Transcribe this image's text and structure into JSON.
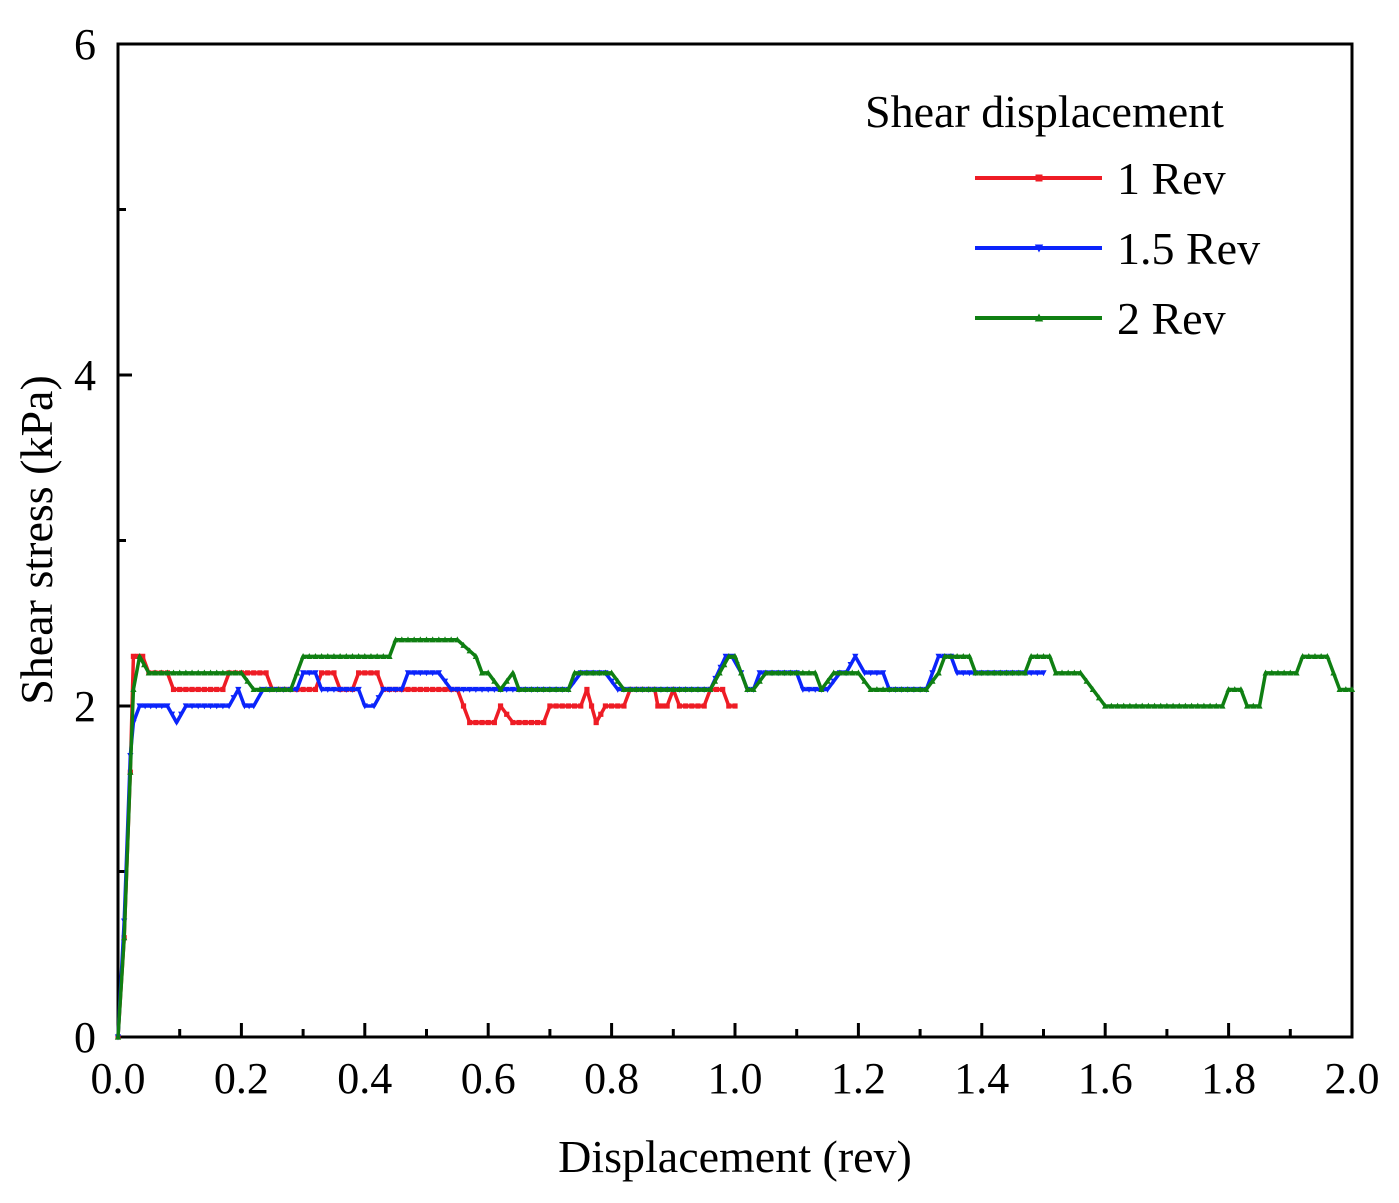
{
  "chart_data": {
    "type": "line",
    "title": "",
    "xlabel": "Displacement (rev)",
    "ylabel": "Shear stress (kPa)",
    "xlim": [
      0,
      2.0
    ],
    "ylim": [
      0,
      6
    ],
    "xticks": [
      0.0,
      0.2,
      0.4,
      0.6,
      0.8,
      1.0,
      1.2,
      1.4,
      1.6,
      1.8,
      2.0
    ],
    "xtick_labels": [
      "0.0",
      "0.2",
      "0.4",
      "0.6",
      "0.8",
      "1.0",
      "1.2",
      "1.4",
      "1.6",
      "1.8",
      "2.0"
    ],
    "yticks": [
      0,
      2,
      4,
      6
    ],
    "ytick_labels": [
      "0",
      "2",
      "4",
      "6"
    ],
    "grid": false,
    "legend": {
      "title": "Shear displacement",
      "position": "top-right"
    },
    "series": [
      {
        "name": "1 Rev",
        "color": "#ee1c25",
        "marker": "square",
        "points": [
          [
            0.0,
            0.0
          ],
          [
            0.01,
            0.6
          ],
          [
            0.02,
            1.6
          ],
          [
            0.025,
            2.3
          ],
          [
            0.04,
            2.3
          ],
          [
            0.05,
            2.2
          ],
          [
            0.08,
            2.2
          ],
          [
            0.09,
            2.1
          ],
          [
            0.17,
            2.1
          ],
          [
            0.18,
            2.2
          ],
          [
            0.24,
            2.2
          ],
          [
            0.25,
            2.1
          ],
          [
            0.32,
            2.1
          ],
          [
            0.33,
            2.2
          ],
          [
            0.35,
            2.2
          ],
          [
            0.36,
            2.1
          ],
          [
            0.38,
            2.1
          ],
          [
            0.39,
            2.2
          ],
          [
            0.42,
            2.2
          ],
          [
            0.43,
            2.1
          ],
          [
            0.55,
            2.1
          ],
          [
            0.56,
            2.0
          ],
          [
            0.57,
            1.9
          ],
          [
            0.61,
            1.9
          ],
          [
            0.62,
            2.0
          ],
          [
            0.64,
            1.9
          ],
          [
            0.69,
            1.9
          ],
          [
            0.7,
            2.0
          ],
          [
            0.75,
            2.0
          ],
          [
            0.76,
            2.1
          ],
          [
            0.775,
            1.9
          ],
          [
            0.79,
            2.0
          ],
          [
            0.82,
            2.0
          ],
          [
            0.83,
            2.1
          ],
          [
            0.87,
            2.1
          ],
          [
            0.875,
            2.0
          ],
          [
            0.89,
            2.0
          ],
          [
            0.9,
            2.1
          ],
          [
            0.91,
            2.0
          ],
          [
            0.95,
            2.0
          ],
          [
            0.96,
            2.1
          ],
          [
            0.98,
            2.1
          ],
          [
            0.99,
            2.0
          ],
          [
            1.0,
            2.0
          ]
        ]
      },
      {
        "name": "1.5 Rev",
        "color": "#0b24fb",
        "marker": "triangle-down",
        "points": [
          [
            0.0,
            0.0
          ],
          [
            0.01,
            0.7
          ],
          [
            0.02,
            1.7
          ],
          [
            0.025,
            1.9
          ],
          [
            0.035,
            2.0
          ],
          [
            0.08,
            2.0
          ],
          [
            0.095,
            1.9
          ],
          [
            0.11,
            2.0
          ],
          [
            0.18,
            2.0
          ],
          [
            0.195,
            2.1
          ],
          [
            0.205,
            2.0
          ],
          [
            0.22,
            2.0
          ],
          [
            0.235,
            2.1
          ],
          [
            0.29,
            2.1
          ],
          [
            0.3,
            2.2
          ],
          [
            0.32,
            2.2
          ],
          [
            0.33,
            2.1
          ],
          [
            0.39,
            2.1
          ],
          [
            0.4,
            2.0
          ],
          [
            0.415,
            2.0
          ],
          [
            0.43,
            2.1
          ],
          [
            0.46,
            2.1
          ],
          [
            0.47,
            2.2
          ],
          [
            0.52,
            2.2
          ],
          [
            0.54,
            2.1
          ],
          [
            0.73,
            2.1
          ],
          [
            0.75,
            2.2
          ],
          [
            0.79,
            2.2
          ],
          [
            0.81,
            2.1
          ],
          [
            0.96,
            2.1
          ],
          [
            0.985,
            2.3
          ],
          [
            0.995,
            2.3
          ],
          [
            1.01,
            2.2
          ],
          [
            1.02,
            2.1
          ],
          [
            1.03,
            2.1
          ],
          [
            1.04,
            2.2
          ],
          [
            1.1,
            2.2
          ],
          [
            1.11,
            2.1
          ],
          [
            1.15,
            2.1
          ],
          [
            1.17,
            2.2
          ],
          [
            1.18,
            2.2
          ],
          [
            1.195,
            2.3
          ],
          [
            1.21,
            2.2
          ],
          [
            1.24,
            2.2
          ],
          [
            1.25,
            2.1
          ],
          [
            1.31,
            2.1
          ],
          [
            1.33,
            2.3
          ],
          [
            1.35,
            2.3
          ],
          [
            1.36,
            2.2
          ],
          [
            1.42,
            2.2
          ],
          [
            1.43,
            2.2
          ],
          [
            1.5,
            2.2
          ]
        ]
      },
      {
        "name": "2 Rev",
        "color": "#0f7f12",
        "marker": "triangle-up",
        "points": [
          [
            0.0,
            0.0
          ],
          [
            0.01,
            0.6
          ],
          [
            0.02,
            1.6
          ],
          [
            0.025,
            2.1
          ],
          [
            0.035,
            2.3
          ],
          [
            0.05,
            2.2
          ],
          [
            0.2,
            2.2
          ],
          [
            0.22,
            2.1
          ],
          [
            0.28,
            2.1
          ],
          [
            0.3,
            2.3
          ],
          [
            0.44,
            2.3
          ],
          [
            0.45,
            2.4
          ],
          [
            0.55,
            2.4
          ],
          [
            0.58,
            2.3
          ],
          [
            0.59,
            2.2
          ],
          [
            0.6,
            2.2
          ],
          [
            0.62,
            2.1
          ],
          [
            0.64,
            2.2
          ],
          [
            0.65,
            2.1
          ],
          [
            0.73,
            2.1
          ],
          [
            0.74,
            2.2
          ],
          [
            0.8,
            2.2
          ],
          [
            0.82,
            2.1
          ],
          [
            0.96,
            2.1
          ],
          [
            0.975,
            2.2
          ],
          [
            0.99,
            2.3
          ],
          [
            1.0,
            2.3
          ],
          [
            1.02,
            2.1
          ],
          [
            1.03,
            2.1
          ],
          [
            1.05,
            2.2
          ],
          [
            1.13,
            2.2
          ],
          [
            1.14,
            2.1
          ],
          [
            1.16,
            2.2
          ],
          [
            1.19,
            2.2
          ],
          [
            1.2,
            2.2
          ],
          [
            1.22,
            2.1
          ],
          [
            1.31,
            2.1
          ],
          [
            1.33,
            2.2
          ],
          [
            1.34,
            2.3
          ],
          [
            1.38,
            2.3
          ],
          [
            1.39,
            2.2
          ],
          [
            1.47,
            2.2
          ],
          [
            1.48,
            2.3
          ],
          [
            1.51,
            2.3
          ],
          [
            1.52,
            2.2
          ],
          [
            1.56,
            2.2
          ],
          [
            1.6,
            2.0
          ],
          [
            1.79,
            2.0
          ],
          [
            1.8,
            2.1
          ],
          [
            1.82,
            2.1
          ],
          [
            1.83,
            2.0
          ],
          [
            1.85,
            2.0
          ],
          [
            1.86,
            2.2
          ],
          [
            1.91,
            2.2
          ],
          [
            1.92,
            2.3
          ],
          [
            1.96,
            2.3
          ],
          [
            1.98,
            2.1
          ],
          [
            2.0,
            2.1
          ]
        ]
      }
    ]
  }
}
